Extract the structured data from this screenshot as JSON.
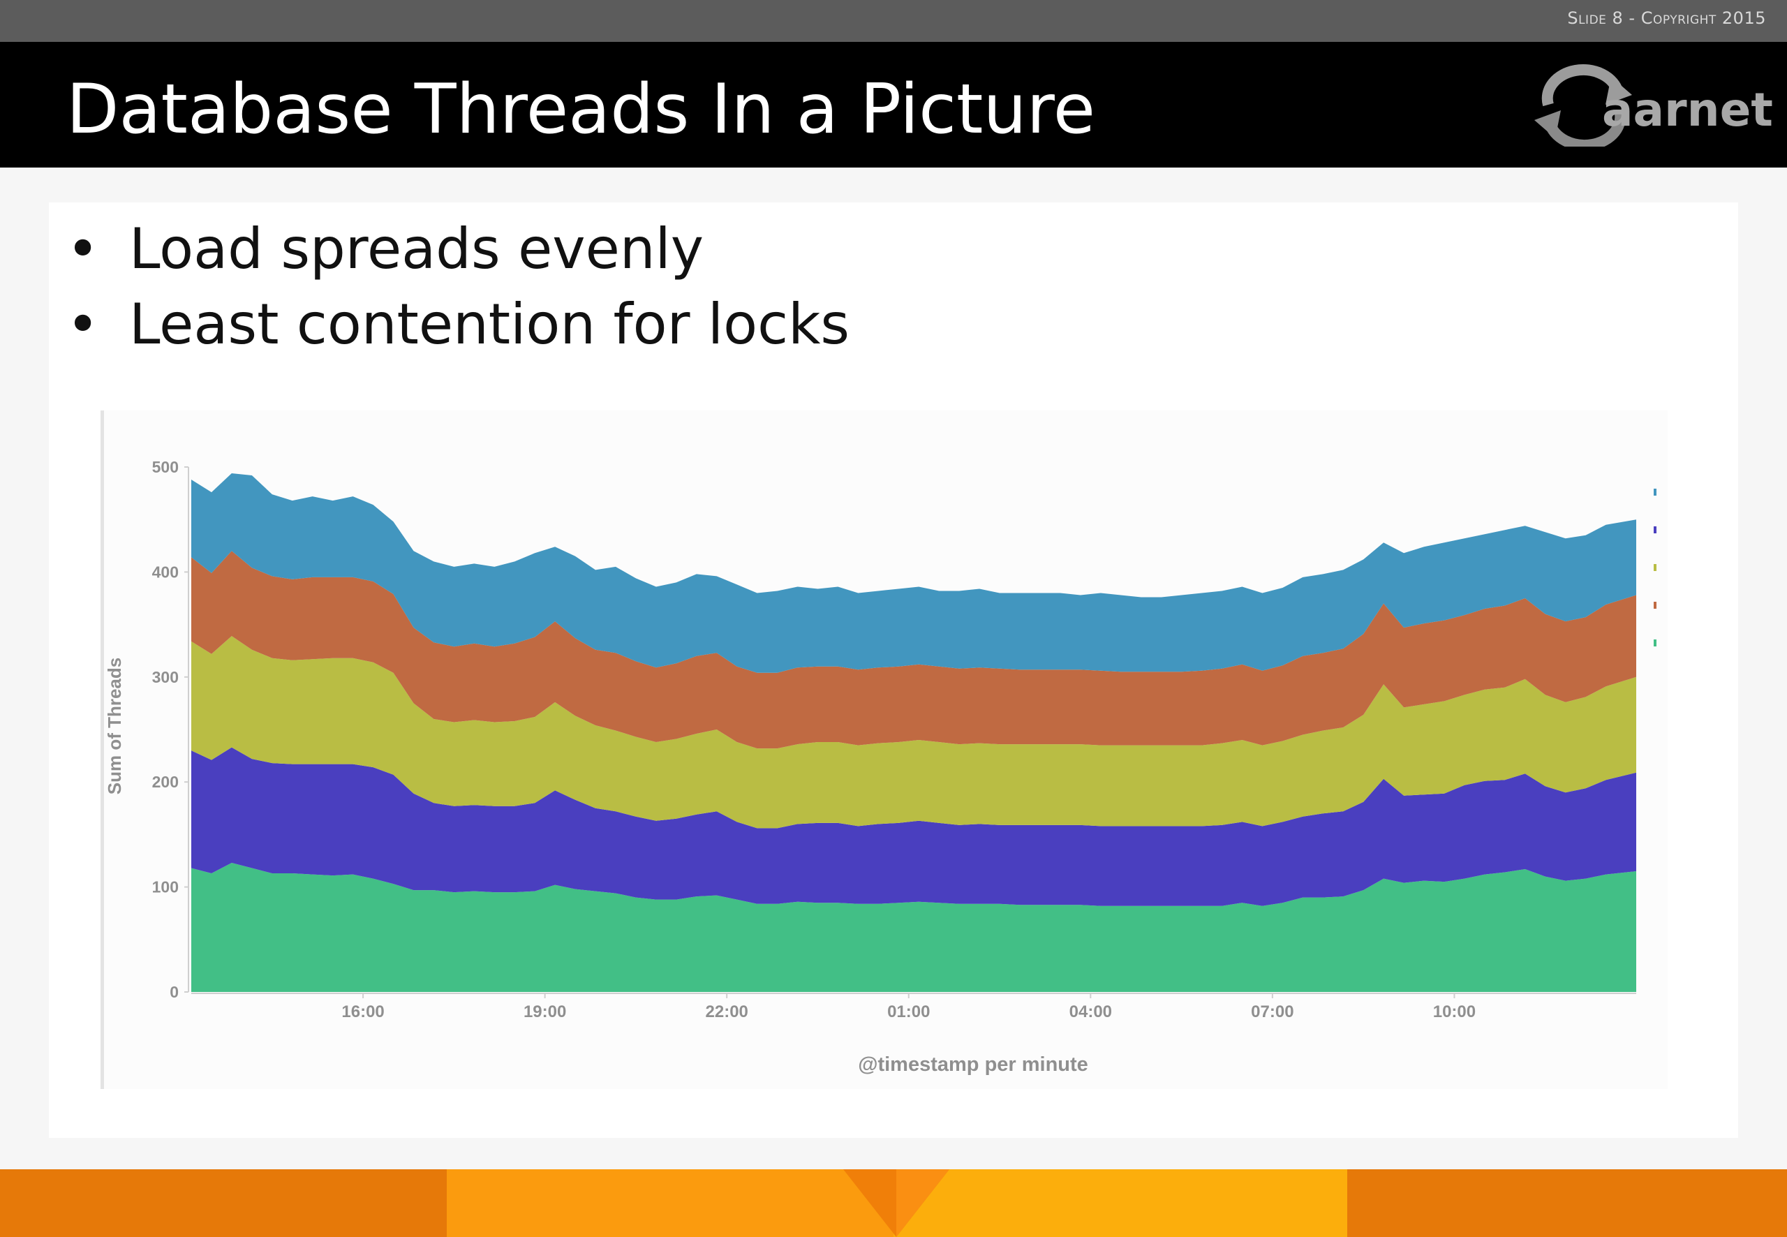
{
  "slide": {
    "number_text": "Slide 8 - Copyright 2015",
    "title": "Database Threads In a Picture",
    "logo_text": "aarnet",
    "bullets": [
      "Load spreads evenly",
      "Least contention for locks"
    ]
  },
  "colors": {
    "series": [
      "#42bf86",
      "#4a3fbf",
      "#b9bd44",
      "#c06a42",
      "#4296bf"
    ],
    "footer": [
      "#e67909",
      "#fb9b0e",
      "#fcae0c"
    ]
  },
  "chart_data": {
    "type": "area",
    "stacked": true,
    "xlabel": "@timestamp per minute",
    "ylabel": "Sum of Threads",
    "ylim": [
      0,
      500
    ],
    "y_ticks": [
      0,
      100,
      200,
      300,
      400,
      500
    ],
    "xlim": [
      "13:10",
      "13:00"
    ],
    "x_ticks": [
      "16:00",
      "19:00",
      "22:00",
      "01:00",
      "04:00",
      "07:00",
      "10:00"
    ],
    "grid": false,
    "x": [
      "13:10",
      "13:30",
      "13:50",
      "14:10",
      "14:30",
      "14:50",
      "15:10",
      "15:30",
      "15:50",
      "16:10",
      "16:30",
      "16:50",
      "17:10",
      "17:30",
      "17:50",
      "18:10",
      "18:30",
      "18:50",
      "19:10",
      "19:30",
      "19:50",
      "20:10",
      "20:30",
      "20:50",
      "21:10",
      "21:30",
      "21:50",
      "22:10",
      "22:30",
      "22:50",
      "23:10",
      "23:30",
      "23:50",
      "00:10",
      "00:30",
      "00:50",
      "01:10",
      "01:30",
      "01:50",
      "02:10",
      "02:30",
      "02:50",
      "03:10",
      "03:30",
      "03:50",
      "04:10",
      "04:30",
      "04:50",
      "05:10",
      "05:30",
      "05:50",
      "06:10",
      "06:30",
      "06:50",
      "07:10",
      "07:30",
      "07:50",
      "08:10",
      "08:30",
      "08:50",
      "09:10",
      "09:30",
      "09:50",
      "10:10",
      "10:30",
      "10:50",
      "11:10",
      "11:30",
      "11:50",
      "12:10",
      "12:30",
      "13:00"
    ],
    "totals": [
      488,
      476,
      494,
      492,
      474,
      468,
      472,
      468,
      472,
      464,
      448,
      420,
      410,
      405,
      408,
      405,
      410,
      418,
      424,
      415,
      402,
      405,
      394,
      386,
      390,
      398,
      396,
      388,
      380,
      382,
      386,
      384,
      386,
      380,
      382,
      384,
      386,
      382,
      382,
      384,
      380,
      380,
      380,
      380,
      378,
      380,
      378,
      376,
      376,
      378,
      380,
      382,
      386,
      380,
      385,
      395,
      398,
      402,
      412,
      428,
      418,
      424,
      428,
      432,
      436,
      440,
      444,
      438,
      432,
      435,
      445,
      450
    ],
    "series": [
      {
        "values": [
          118,
          113,
          123,
          118,
          113,
          113,
          112,
          111,
          112,
          108,
          103,
          97,
          97,
          95,
          96,
          95,
          95,
          96,
          102,
          98,
          96,
          94,
          90,
          88,
          88,
          91,
          92,
          88,
          84,
          84,
          86,
          85,
          85,
          84,
          84,
          85,
          86,
          85,
          84,
          84,
          84,
          83,
          83,
          83,
          83,
          82,
          82,
          82,
          82,
          82,
          82,
          82,
          85,
          82,
          85,
          90,
          90,
          91,
          97,
          108,
          104,
          106,
          105,
          108,
          112,
          114,
          117,
          110,
          106,
          108,
          112,
          115
        ]
      },
      {
        "values": [
          112,
          108,
          110,
          104,
          105,
          104,
          105,
          106,
          105,
          106,
          104,
          92,
          83,
          82,
          82,
          82,
          82,
          84,
          90,
          85,
          79,
          78,
          77,
          75,
          77,
          78,
          80,
          74,
          72,
          72,
          74,
          76,
          76,
          74,
          76,
          76,
          77,
          76,
          75,
          76,
          75,
          76,
          76,
          76,
          76,
          76,
          76,
          76,
          76,
          76,
          76,
          77,
          77,
          76,
          77,
          77,
          80,
          81,
          84,
          95,
          83,
          82,
          84,
          89,
          89,
          88,
          91,
          86,
          84,
          86,
          90,
          94
        ]
      },
      {
        "values": [
          104,
          101,
          106,
          104,
          100,
          99,
          100,
          101,
          101,
          100,
          97,
          86,
          80,
          80,
          81,
          80,
          81,
          82,
          84,
          80,
          79,
          77,
          76,
          75,
          76,
          77,
          78,
          76,
          76,
          76,
          76,
          77,
          77,
          77,
          77,
          77,
          77,
          77,
          77,
          77,
          77,
          77,
          77,
          77,
          77,
          77,
          77,
          77,
          77,
          77,
          77,
          78,
          78,
          77,
          77,
          78,
          79,
          80,
          83,
          90,
          84,
          86,
          88,
          86,
          87,
          88,
          90,
          87,
          86,
          87,
          89,
          91
        ]
      },
      {
        "values": [
          80,
          77,
          81,
          78,
          78,
          77,
          78,
          77,
          77,
          77,
          75,
          72,
          73,
          72,
          73,
          72,
          74,
          76,
          77,
          74,
          72,
          74,
          72,
          71,
          72,
          74,
          73,
          72,
          72,
          72,
          73,
          72,
          72,
          72,
          72,
          72,
          72,
          72,
          72,
          72,
          72,
          71,
          71,
          71,
          71,
          71,
          70,
          70,
          70,
          70,
          71,
          71,
          72,
          71,
          72,
          75,
          74,
          75,
          77,
          77,
          76,
          77,
          77,
          76,
          77,
          78,
          77,
          77,
          77,
          76,
          78,
          78
        ]
      },
      {
        "values": [
          74,
          77,
          74,
          88,
          78,
          75,
          77,
          73,
          77,
          73,
          69,
          73,
          77,
          76,
          76,
          76,
          78,
          80,
          71,
          78,
          76,
          82,
          79,
          77,
          77,
          78,
          73,
          78,
          76,
          78,
          77,
          74,
          76,
          73,
          73,
          74,
          74,
          72,
          74,
          75,
          72,
          73,
          73,
          73,
          71,
          74,
          73,
          71,
          71,
          73,
          74,
          74,
          74,
          74,
          74,
          75,
          75,
          75,
          71,
          58,
          71,
          73,
          74,
          73,
          71,
          72,
          69,
          78,
          79,
          78,
          76,
          72
        ]
      }
    ]
  }
}
